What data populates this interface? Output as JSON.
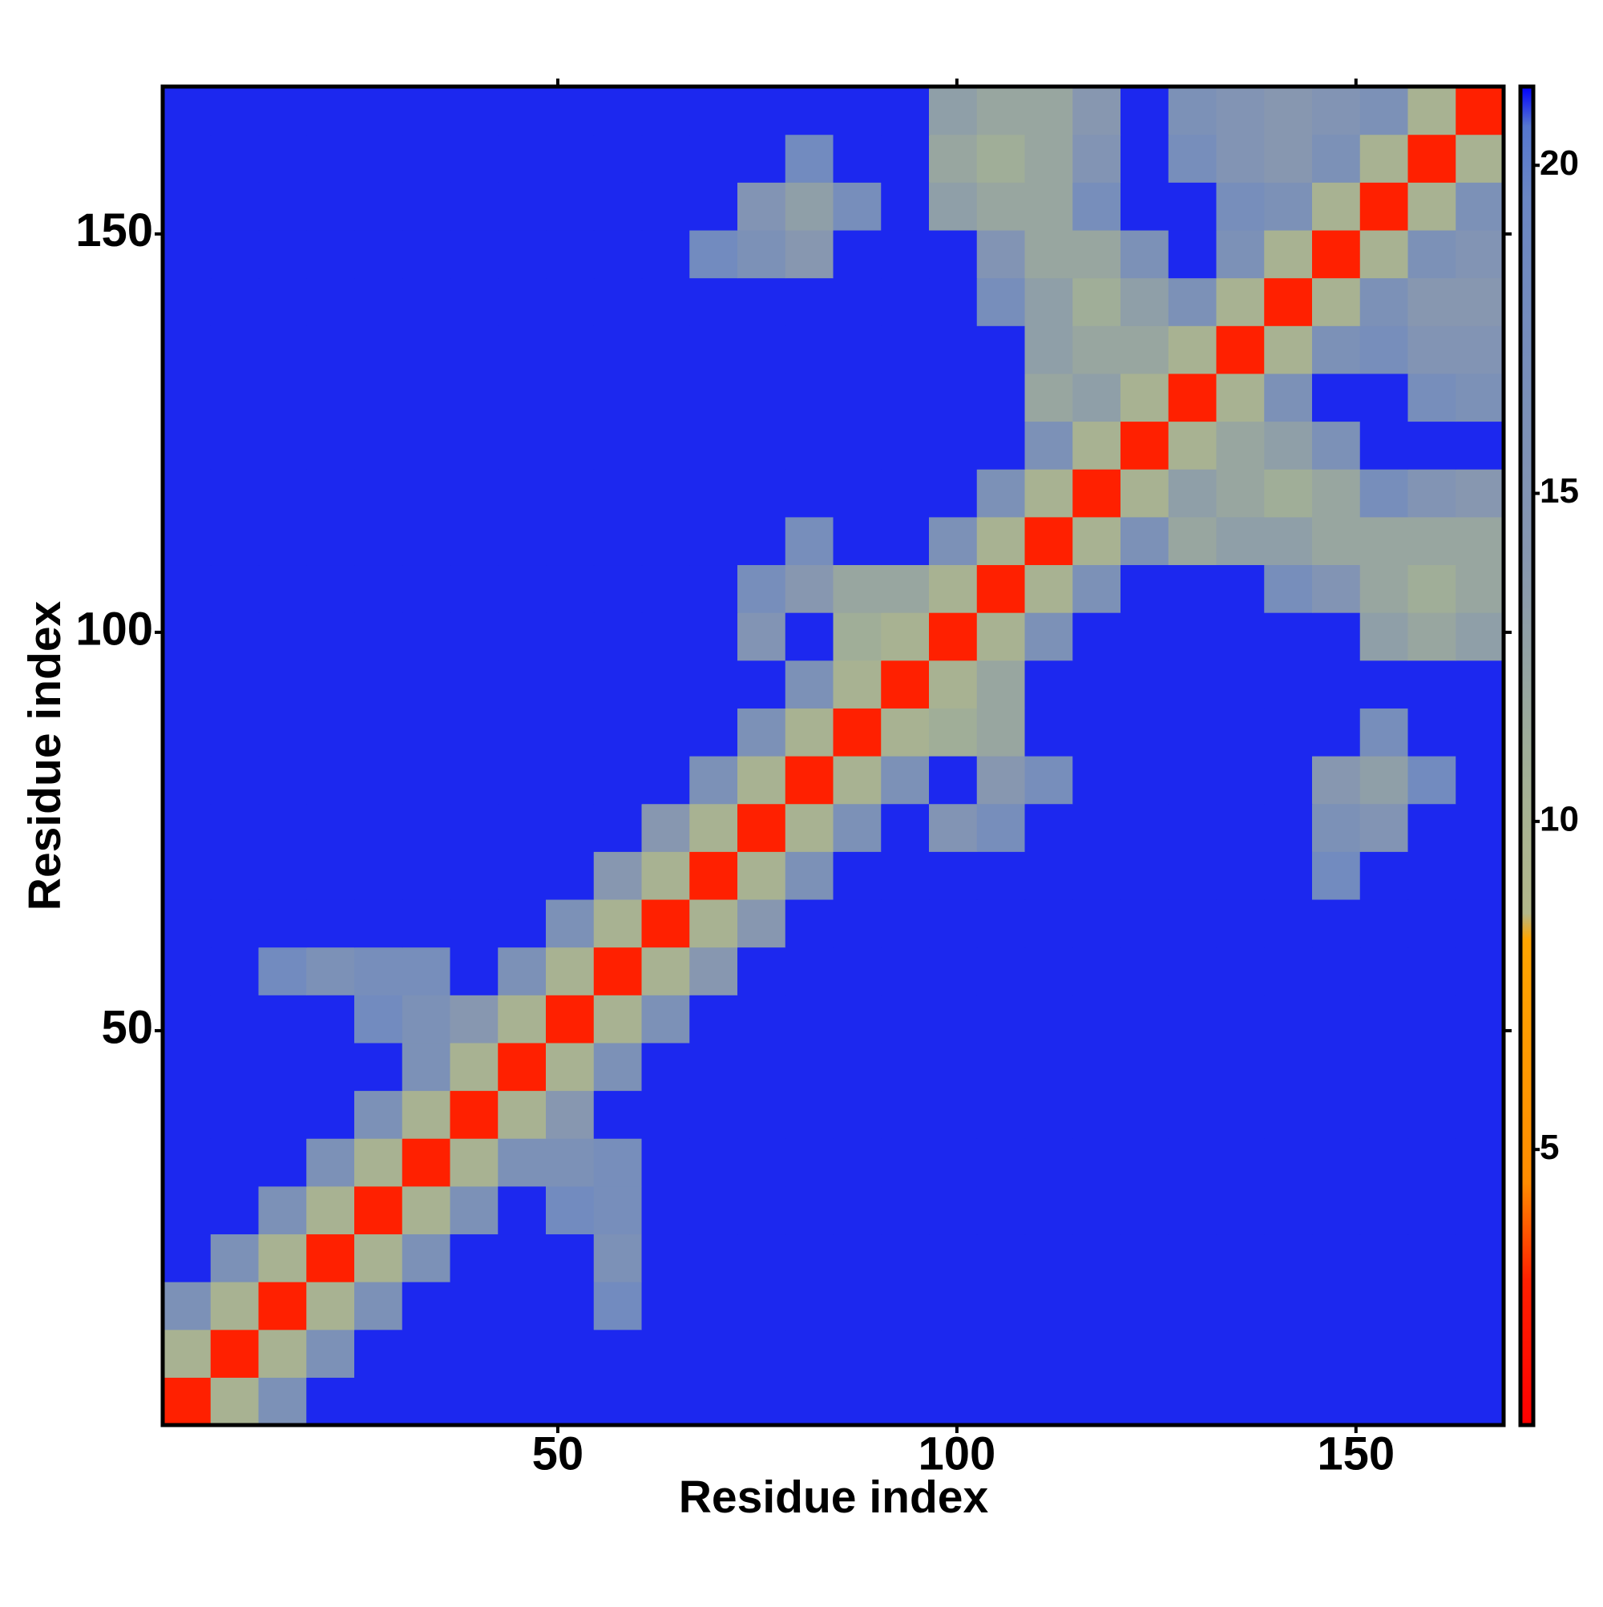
{
  "chart_data": {
    "type": "heatmap",
    "xlabel": "Residue index",
    "ylabel": "Residue index",
    "x": [
      3.5,
      9.5,
      15.5,
      21.5,
      27.5,
      33.5,
      39.5,
      45.5,
      51.5,
      57.5,
      63.5,
      69.5,
      75.5,
      81.5,
      87.5,
      93.5,
      99.5,
      105.5,
      111.5,
      117.5,
      123.5,
      129.5,
      135.5,
      141.5,
      147.5,
      153.5,
      159.5,
      165.5
    ],
    "y": [
      3.5,
      9.5,
      15.5,
      21.5,
      27.5,
      33.5,
      39.5,
      45.5,
      51.5,
      57.5,
      63.5,
      69.5,
      75.5,
      81.5,
      87.5,
      93.5,
      99.5,
      105.5,
      111.5,
      117.5,
      123.5,
      129.5,
      135.5,
      141.5,
      147.5,
      153.5,
      159.5,
      165.5
    ],
    "z": [
      [
        3,
        10,
        16,
        21,
        21,
        21,
        21,
        21,
        21,
        21,
        21,
        21,
        21,
        21,
        21,
        21,
        21,
        21,
        21,
        21,
        21,
        21,
        21,
        21,
        21,
        21,
        21,
        21
      ],
      [
        10,
        3,
        10,
        16,
        21,
        21,
        21,
        21,
        21,
        21,
        21,
        21,
        21,
        21,
        21,
        21,
        21,
        21,
        21,
        21,
        21,
        21,
        21,
        21,
        21,
        21,
        21,
        21
      ],
      [
        16,
        10,
        3,
        10,
        16,
        21,
        21,
        21,
        21,
        18,
        21,
        21,
        21,
        21,
        21,
        21,
        21,
        21,
        21,
        21,
        21,
        21,
        21,
        21,
        21,
        21,
        21,
        21
      ],
      [
        21,
        16,
        10,
        3,
        10,
        16,
        21,
        21,
        21,
        16,
        21,
        21,
        21,
        21,
        21,
        21,
        21,
        21,
        21,
        21,
        21,
        21,
        21,
        21,
        21,
        21,
        21,
        21
      ],
      [
        21,
        21,
        16,
        10,
        3,
        10,
        16,
        21,
        18,
        17,
        21,
        21,
        21,
        21,
        21,
        21,
        21,
        21,
        21,
        21,
        21,
        21,
        21,
        21,
        21,
        21,
        21,
        21
      ],
      [
        21,
        21,
        21,
        16,
        10,
        3,
        10,
        16,
        16,
        17,
        21,
        21,
        21,
        21,
        21,
        21,
        21,
        21,
        21,
        21,
        21,
        21,
        21,
        21,
        21,
        21,
        21,
        21
      ],
      [
        21,
        21,
        21,
        21,
        16,
        10,
        3,
        10,
        14,
        21,
        21,
        21,
        21,
        21,
        21,
        21,
        21,
        21,
        21,
        21,
        21,
        21,
        21,
        21,
        21,
        21,
        21,
        21
      ],
      [
        21,
        21,
        21,
        21,
        21,
        16,
        10,
        3,
        10,
        16,
        21,
        21,
        21,
        21,
        21,
        21,
        21,
        21,
        21,
        21,
        21,
        21,
        21,
        21,
        21,
        21,
        21,
        21
      ],
      [
        21,
        21,
        21,
        21,
        18,
        16,
        14,
        10,
        3,
        10,
        16,
        21,
        21,
        21,
        21,
        21,
        21,
        21,
        21,
        21,
        21,
        21,
        21,
        21,
        21,
        21,
        21,
        21
      ],
      [
        21,
        21,
        18,
        16,
        17,
        17,
        21,
        16,
        10,
        3,
        10,
        14,
        21,
        21,
        21,
        21,
        21,
        21,
        21,
        21,
        21,
        21,
        21,
        21,
        21,
        21,
        21,
        21
      ],
      [
        21,
        21,
        21,
        21,
        21,
        21,
        21,
        21,
        16,
        10,
        3,
        10,
        14,
        21,
        21,
        21,
        21,
        21,
        21,
        21,
        21,
        21,
        21,
        21,
        21,
        21,
        21,
        21
      ],
      [
        21,
        21,
        21,
        21,
        21,
        21,
        21,
        21,
        21,
        14,
        10,
        3,
        10,
        16,
        21,
        21,
        21,
        21,
        21,
        21,
        21,
        21,
        21,
        21,
        18,
        21,
        21,
        21
      ],
      [
        21,
        21,
        21,
        21,
        21,
        21,
        21,
        21,
        21,
        21,
        14,
        10,
        3,
        10,
        16,
        21,
        15,
        17,
        21,
        21,
        21,
        21,
        21,
        21,
        16,
        15,
        21,
        21
      ],
      [
        21,
        21,
        21,
        21,
        21,
        21,
        21,
        21,
        21,
        21,
        21,
        16,
        10,
        3,
        10,
        16,
        21,
        14,
        17,
        21,
        21,
        21,
        21,
        21,
        14,
        13,
        18,
        21
      ],
      [
        21,
        21,
        21,
        21,
        21,
        21,
        21,
        21,
        21,
        21,
        21,
        21,
        16,
        10,
        3,
        10,
        11,
        12,
        21,
        21,
        21,
        21,
        21,
        21,
        21,
        17,
        21,
        21
      ],
      [
        21,
        21,
        21,
        21,
        21,
        21,
        21,
        21,
        21,
        21,
        21,
        21,
        21,
        16,
        10,
        3,
        10,
        12,
        21,
        21,
        21,
        21,
        21,
        21,
        21,
        21,
        21,
        21
      ],
      [
        21,
        21,
        21,
        21,
        21,
        21,
        21,
        21,
        21,
        21,
        21,
        21,
        15,
        21,
        11,
        10,
        3,
        10,
        16,
        21,
        21,
        21,
        21,
        21,
        21,
        13,
        12,
        13
      ],
      [
        21,
        21,
        21,
        21,
        21,
        21,
        21,
        21,
        21,
        21,
        21,
        21,
        17,
        14,
        12,
        12,
        10,
        3,
        10,
        16,
        21,
        21,
        21,
        17,
        15,
        12,
        11,
        12
      ],
      [
        21,
        21,
        21,
        21,
        21,
        21,
        21,
        21,
        21,
        21,
        21,
        21,
        21,
        17,
        21,
        21,
        16,
        10,
        3,
        10,
        16,
        12,
        13,
        13,
        12,
        12,
        12,
        12
      ],
      [
        21,
        21,
        21,
        21,
        21,
        21,
        21,
        21,
        21,
        21,
        21,
        21,
        21,
        21,
        21,
        21,
        21,
        16,
        10,
        3,
        10,
        13,
        12,
        11,
        12,
        17,
        15,
        14
      ],
      [
        21,
        21,
        21,
        21,
        21,
        21,
        21,
        21,
        21,
        21,
        21,
        21,
        21,
        21,
        21,
        21,
        21,
        21,
        16,
        10,
        3,
        10,
        12,
        13,
        16,
        21,
        21,
        21
      ],
      [
        21,
        21,
        21,
        21,
        21,
        21,
        21,
        21,
        21,
        21,
        21,
        21,
        21,
        21,
        21,
        21,
        21,
        21,
        12,
        13,
        10,
        3,
        10,
        16,
        21,
        21,
        17,
        16
      ],
      [
        21,
        21,
        21,
        21,
        21,
        21,
        21,
        21,
        21,
        21,
        21,
        21,
        21,
        21,
        21,
        21,
        21,
        21,
        13,
        12,
        12,
        10,
        3,
        10,
        16,
        17,
        15,
        15
      ],
      [
        21,
        21,
        21,
        21,
        21,
        21,
        21,
        21,
        21,
        21,
        21,
        21,
        21,
        21,
        21,
        21,
        21,
        17,
        13,
        11,
        13,
        16,
        10,
        3,
        10,
        16,
        14,
        14
      ],
      [
        21,
        21,
        21,
        21,
        21,
        21,
        21,
        21,
        21,
        21,
        21,
        18,
        16,
        14,
        21,
        21,
        21,
        15,
        12,
        12,
        16,
        21,
        16,
        10,
        3,
        10,
        16,
        15
      ],
      [
        21,
        21,
        21,
        21,
        21,
        21,
        21,
        21,
        21,
        21,
        21,
        21,
        15,
        13,
        17,
        21,
        13,
        12,
        12,
        17,
        21,
        21,
        17,
        16,
        10,
        3,
        10,
        16
      ],
      [
        21,
        21,
        21,
        21,
        21,
        21,
        21,
        21,
        21,
        21,
        21,
        21,
        21,
        18,
        21,
        21,
        12,
        11,
        12,
        15,
        21,
        17,
        15,
        14,
        16,
        10,
        3,
        10
      ],
      [
        21,
        21,
        21,
        21,
        21,
        21,
        21,
        21,
        21,
        21,
        21,
        21,
        21,
        21,
        21,
        21,
        13,
        12,
        12,
        14,
        21,
        16,
        15,
        14,
        15,
        16,
        10,
        3
      ]
    ],
    "xlim": [
      0.5,
      168.5
    ],
    "ylim": [
      0.5,
      168.5
    ],
    "xticks": [
      50,
      100,
      150
    ],
    "yticks": [
      50,
      100,
      150
    ],
    "clim": [
      0.8,
      21.2
    ],
    "cticks": [
      5,
      10,
      15,
      20
    ],
    "colorscale": [
      {
        "value": 0.8,
        "color": "#ff0000"
      },
      {
        "value": 3,
        "color": "#ff2000"
      },
      {
        "value": 4.5,
        "color": "#ff8c00"
      },
      {
        "value": 8.2,
        "color": "#ffa500"
      },
      {
        "value": 8.6,
        "color": "#b3b88a"
      },
      {
        "value": 11,
        "color": "#a0ae98"
      },
      {
        "value": 14,
        "color": "#8797b0"
      },
      {
        "value": 19.5,
        "color": "#6a86c4"
      },
      {
        "value": 20.6,
        "color": "#5577d0"
      },
      {
        "value": 21.2,
        "color": "#0000ff"
      }
    ]
  }
}
